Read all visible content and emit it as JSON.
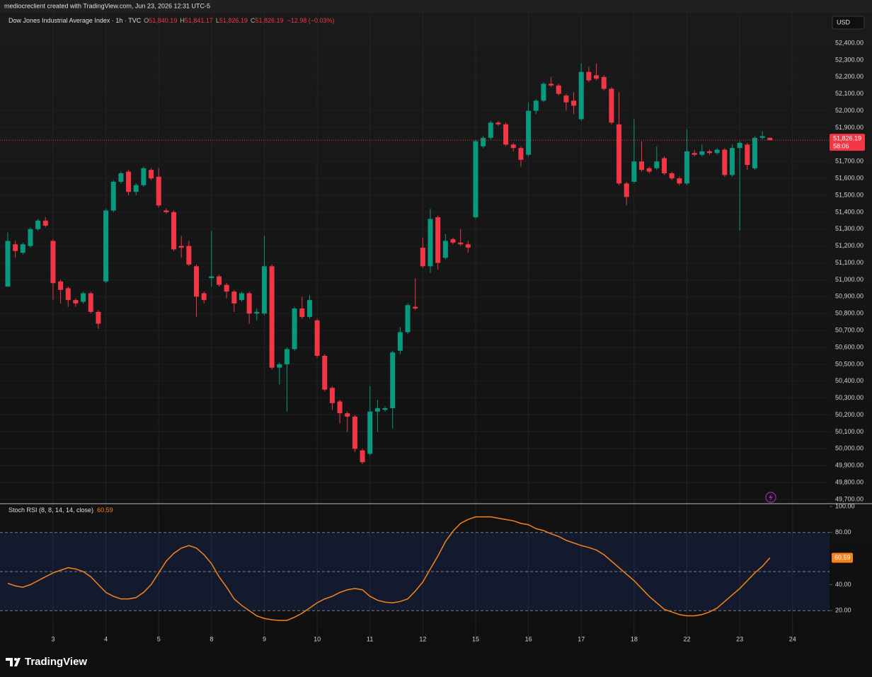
{
  "header": {
    "text": "mediocreclient created with TradingView.com, Jun 23, 2026 12:31 UTC-5"
  },
  "currency": "USD",
  "chart_data": [
    {
      "type": "candlestick",
      "title": "Dow Jones Industrial Average Index · 1h · TVC",
      "legend": [
        {
          "key": "O",
          "value": "51,840.19"
        },
        {
          "key": "H",
          "value": "51,841.17"
        },
        {
          "key": "L",
          "value": "51,826.19"
        },
        {
          "key": "C",
          "value": "51,826.19"
        }
      ],
      "change": "−12.98 (−0.03%)",
      "last_price_label": "51,826.19",
      "countdown": "58:06",
      "up_color": "#089981",
      "down_color": "#f23645",
      "open": [
        50960,
        51210,
        51160,
        51200,
        51300,
        51350,
        51230,
        50990,
        50950,
        50880,
        50870,
        50920,
        50810,
        50990,
        51410,
        51580,
        51640,
        51520,
        51560,
        51650,
        51610,
        51410,
        51400,
        51200,
        51200,
        51080,
        50920,
        51010,
        51020,
        50970,
        50930,
        50880,
        50920,
        50800,
        50800,
        51080,
        50480,
        50500,
        50590,
        50830,
        50780,
        50760,
        50550,
        50360,
        50280,
        50210,
        50190,
        49990,
        49970,
        50220,
        50230,
        50240,
        50580,
        50690,
        50840,
        51190,
        51080,
        51370,
        51130,
        51240,
        51220,
        51210,
        51370,
        51790,
        51840,
        51930,
        51920,
        51800,
        51780,
        51740,
        52000,
        52060,
        52160,
        52150,
        52090,
        52060,
        51950,
        52230,
        52210,
        52200,
        52130,
        51920,
        51570,
        51580,
        51700,
        51660,
        51660,
        51720,
        51630,
        51600,
        51570,
        51750,
        51740,
        51760,
        51750,
        51770,
        51620,
        51780,
        51800,
        51660,
        51840,
        51840.19
      ],
      "high": [
        51280,
        51230,
        51220,
        51310,
        51360,
        51370,
        51240,
        51000,
        50960,
        50890,
        50930,
        50930,
        50820,
        51420,
        51590,
        51640,
        51650,
        51570,
        51670,
        51660,
        51660,
        51420,
        51410,
        51260,
        51230,
        51090,
        50930,
        51290,
        51030,
        50980,
        50940,
        50930,
        50930,
        50830,
        51260,
        51090,
        50510,
        50600,
        50840,
        50900,
        50910,
        50770,
        50560,
        50370,
        50290,
        50220,
        50200,
        50000,
        50370,
        50290,
        50250,
        50580,
        50720,
        50860,
        51010,
        51250,
        51420,
        51380,
        51270,
        51250,
        51300,
        51230,
        51830,
        51850,
        51940,
        51940,
        51930,
        51810,
        51790,
        52050,
        52070,
        52170,
        52200,
        52160,
        52100,
        52110,
        52280,
        52260,
        52280,
        52210,
        52140,
        52110,
        51580,
        51950,
        51820,
        51670,
        51790,
        51730,
        51640,
        51610,
        51890,
        51770,
        51800,
        51770,
        51780,
        51780,
        51800,
        51820,
        51810,
        51850,
        51880,
        51841.17
      ],
      "low": [
        50960,
        51130,
        51150,
        51190,
        51290,
        51310,
        50880,
        50860,
        50840,
        50840,
        50860,
        50800,
        50710,
        50980,
        51400,
        51570,
        51500,
        51500,
        51550,
        51590,
        51430,
        51390,
        51170,
        51130,
        51080,
        50780,
        50860,
        50960,
        50960,
        50890,
        50810,
        50870,
        50740,
        50760,
        50790,
        50470,
        50380,
        50220,
        50580,
        50770,
        50770,
        50540,
        50340,
        50230,
        50150,
        50100,
        49980,
        49910,
        49960,
        50100,
        50220,
        50120,
        50560,
        50680,
        50820,
        51070,
        51040,
        51060,
        51120,
        51210,
        51200,
        51160,
        51360,
        51780,
        51830,
        51910,
        51790,
        51760,
        51670,
        51730,
        51980,
        52050,
        52140,
        52090,
        52000,
        51980,
        51940,
        52170,
        52180,
        52120,
        51920,
        51560,
        51440,
        51570,
        51640,
        51630,
        51650,
        51620,
        51590,
        51560,
        51560,
        51730,
        51730,
        51740,
        51740,
        51610,
        51610,
        51290,
        51650,
        51650,
        51830,
        51826.19
      ],
      "close": [
        51230,
        51170,
        51210,
        51300,
        51350,
        51320,
        50980,
        50940,
        50880,
        50860,
        50920,
        50810,
        50740,
        51410,
        51580,
        51630,
        51520,
        51560,
        51660,
        51600,
        51440,
        51400,
        51180,
        51190,
        51090,
        50900,
        50880,
        51020,
        50970,
        50930,
        50860,
        50920,
        50800,
        50810,
        51080,
        50480,
        50500,
        50590,
        50830,
        50780,
        50880,
        50550,
        50350,
        50270,
        50210,
        50190,
        50000,
        49920,
        50220,
        50240,
        50240,
        50570,
        50690,
        50850,
        50830,
        51080,
        51360,
        51100,
        51230,
        51220,
        51210,
        51190,
        51820,
        51840,
        51930,
        51920,
        51800,
        51780,
        51710,
        52000,
        52060,
        52160,
        52150,
        52100,
        52050,
        52030,
        52230,
        52180,
        52190,
        52130,
        51930,
        51570,
        51490,
        51700,
        51650,
        51640,
        51700,
        51630,
        51600,
        51570,
        51760,
        51740,
        51760,
        51750,
        51770,
        51620,
        51780,
        51810,
        51680,
        51840,
        51850,
        51826.19
      ],
      "xlim": [
        -1.03,
        108.9
      ],
      "xticks": [
        {
          "value": 6,
          "label": "3"
        },
        {
          "value": 13,
          "label": "4"
        },
        {
          "value": 20,
          "label": "5"
        },
        {
          "value": 27,
          "label": "8"
        },
        {
          "value": 34,
          "label": "9"
        },
        {
          "value": 41,
          "label": "10"
        },
        {
          "value": 48,
          "label": "11"
        },
        {
          "value": 55,
          "label": "12"
        },
        {
          "value": 62,
          "label": "15"
        },
        {
          "value": 69,
          "label": "16"
        },
        {
          "value": 76,
          "label": "17"
        },
        {
          "value": 83,
          "label": "18"
        },
        {
          "value": 90,
          "label": "22"
        },
        {
          "value": 97,
          "label": "23"
        },
        {
          "value": 104,
          "label": "24"
        }
      ],
      "ylim": [
        49679,
        52572
      ],
      "yticks": [
        {
          "value": 49700,
          "label": "49,700.00"
        },
        {
          "value": 49800,
          "label": "49,800.00"
        },
        {
          "value": 49900,
          "label": "49,900.00"
        },
        {
          "value": 50000,
          "label": "50,000.00"
        },
        {
          "value": 50100,
          "label": "50,100.00"
        },
        {
          "value": 50200,
          "label": "50,200.00"
        },
        {
          "value": 50300,
          "label": "50,300.00"
        },
        {
          "value": 50400,
          "label": "50,400.00"
        },
        {
          "value": 50500,
          "label": "50,500.00"
        },
        {
          "value": 50600,
          "label": "50,600.00"
        },
        {
          "value": 50700,
          "label": "50,700.00"
        },
        {
          "value": 50800,
          "label": "50,800.00"
        },
        {
          "value": 50900,
          "label": "50,900.00"
        },
        {
          "value": 51000,
          "label": "51,000.00"
        },
        {
          "value": 51100,
          "label": "51,100.00"
        },
        {
          "value": 51200,
          "label": "51,200.00"
        },
        {
          "value": 51300,
          "label": "51,300.00"
        },
        {
          "value": 51400,
          "label": "51,400.00"
        },
        {
          "value": 51500,
          "label": "51,500.00"
        },
        {
          "value": 51600,
          "label": "51,600.00"
        },
        {
          "value": 51700,
          "label": "51,700.00"
        },
        {
          "value": 51800,
          "label": "51,800.00"
        },
        {
          "value": 51900,
          "label": "51,900.00"
        },
        {
          "value": 52000,
          "label": "52,000.00"
        },
        {
          "value": 52100,
          "label": "52,100.00"
        },
        {
          "value": 52200,
          "label": "52,200.00"
        },
        {
          "value": 52300,
          "label": "52,300.00"
        },
        {
          "value": 52400,
          "label": "52,400.00"
        }
      ],
      "grid": true
    },
    {
      "type": "line",
      "title": "Stoch RSI (8, 8, 14, 14, close)",
      "last_value_label": "60.59",
      "color": "#f7821b",
      "values": [
        41,
        39,
        38,
        40,
        43,
        46,
        49,
        51,
        53,
        52,
        50,
        46,
        40,
        34,
        31,
        29,
        29,
        30,
        34,
        40,
        49,
        58,
        64,
        68,
        70,
        68,
        63,
        56,
        46,
        38,
        29,
        24,
        20,
        16,
        14,
        13,
        12.5,
        12.5,
        15,
        18,
        22,
        26,
        29,
        31,
        34,
        36,
        37,
        36,
        31,
        28,
        26.5,
        26,
        27,
        29,
        35,
        42,
        52,
        62,
        73,
        81,
        87,
        90,
        92,
        92,
        92,
        91,
        90,
        89,
        87,
        86,
        83,
        81.5,
        79,
        77,
        74,
        72,
        70,
        68.5,
        66.5,
        63,
        58,
        53,
        48,
        43,
        37,
        31,
        26,
        21,
        19,
        17,
        16,
        16,
        17,
        19,
        22,
        27,
        32,
        37,
        43,
        49,
        54,
        60.59
      ],
      "ylim": [
        0,
        101.6
      ],
      "yticks": [
        {
          "value": 20,
          "label": "20.00"
        },
        {
          "value": 40,
          "label": "40.00"
        },
        {
          "value": 80,
          "label": "80.00"
        },
        {
          "value": 100,
          "label": "100.00"
        }
      ],
      "bands": [
        20,
        50,
        80
      ]
    }
  ],
  "footer": {
    "logo": "TradingView"
  }
}
